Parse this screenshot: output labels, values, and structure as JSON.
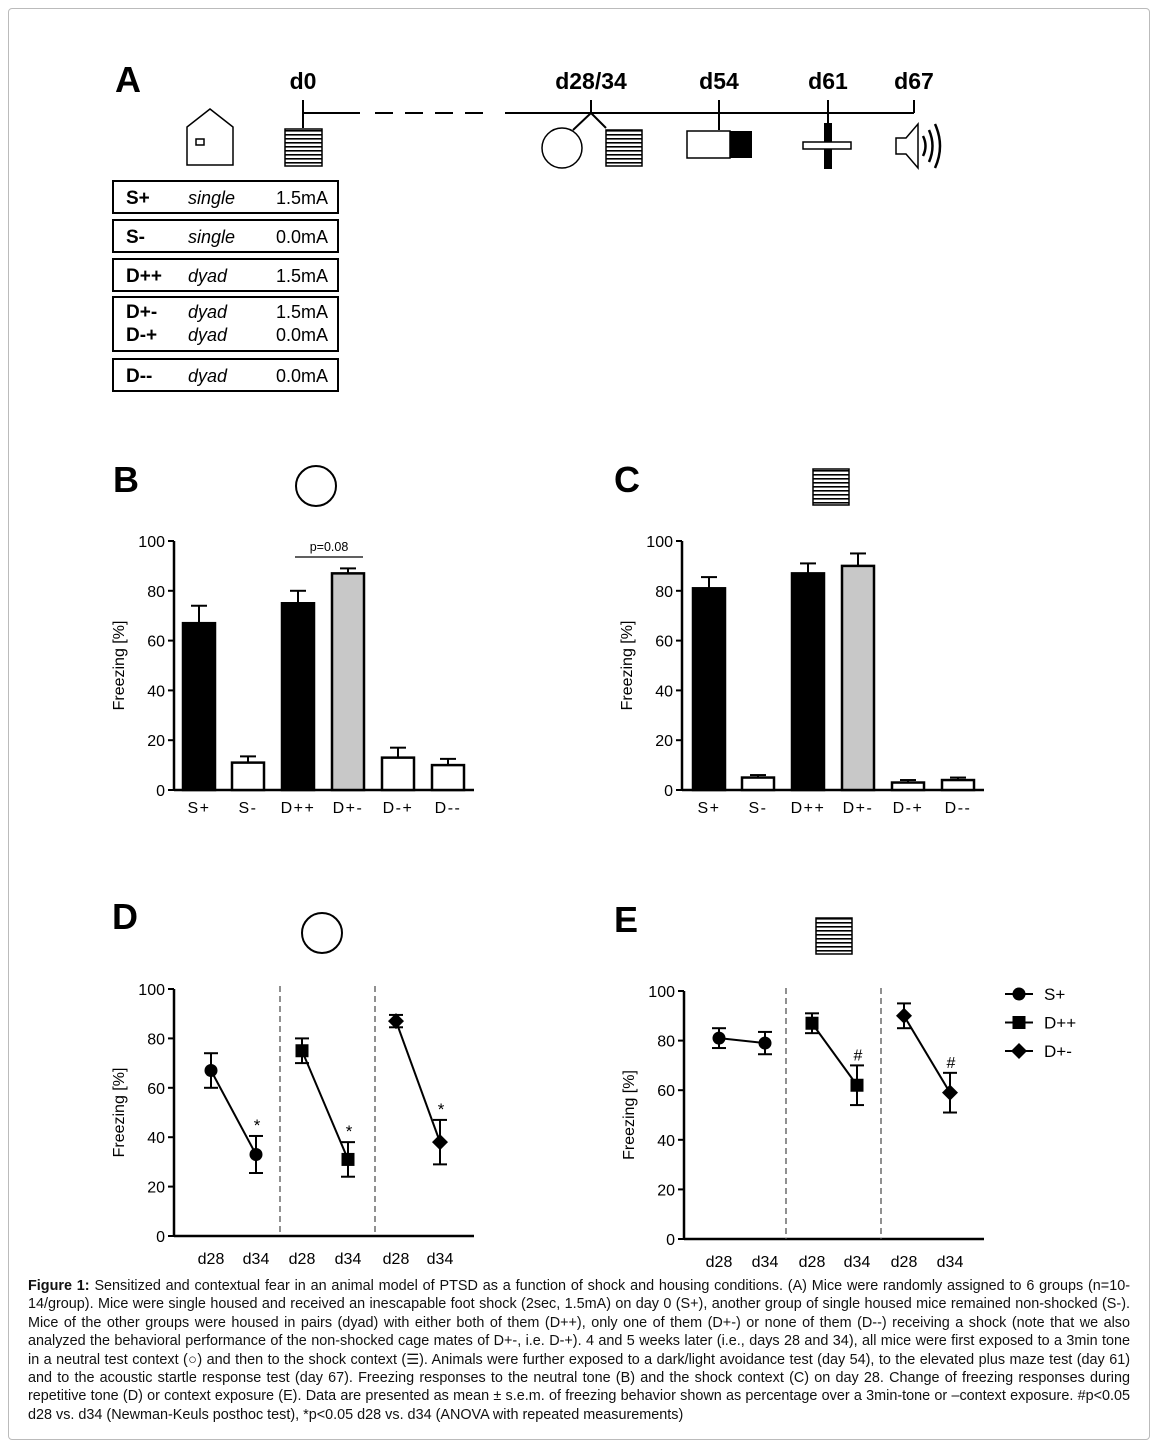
{
  "panel_a": {
    "letter": "A",
    "timepoints": [
      "d0",
      "d28/34",
      "d54",
      "d61",
      "d67"
    ],
    "groups": [
      {
        "rows": [
          {
            "name": "S+",
            "housing": "single",
            "shock": "1.5mA"
          }
        ]
      },
      {
        "rows": [
          {
            "name": "S-",
            "housing": "single",
            "shock": "0.0mA"
          }
        ]
      },
      {
        "rows": [
          {
            "name": "D++",
            "housing": "dyad",
            "shock": "1.5mA"
          }
        ]
      },
      {
        "rows": [
          {
            "name": "D+-",
            "housing": "dyad",
            "shock": "1.5mA"
          },
          {
            "name": "D-+",
            "housing": "dyad",
            "shock": "0.0mA"
          }
        ]
      },
      {
        "rows": [
          {
            "name": "D--",
            "housing": "dyad",
            "shock": "0.0mA"
          }
        ]
      }
    ]
  },
  "chart_data": [
    {
      "panel": "B",
      "type": "bar",
      "context_icon": "circle-icon",
      "ylabel": "Freezing [%]",
      "ylim": [
        0,
        100
      ],
      "yticks": [
        0,
        20,
        40,
        60,
        80,
        100
      ],
      "categories": [
        "S+",
        "S-",
        "D++",
        "D+-",
        "D-+",
        "D--"
      ],
      "values": [
        67,
        11,
        75,
        87,
        13,
        10
      ],
      "errors": [
        7,
        2.5,
        5,
        2,
        4,
        2.5
      ],
      "fills": [
        "#000000",
        "#ffffff",
        "#000000",
        "#c8c8c8",
        "#ffffff",
        "#ffffff"
      ],
      "annotation": {
        "text": "p=0.08",
        "between": [
          "D++",
          "D+-"
        ]
      }
    },
    {
      "panel": "C",
      "type": "bar",
      "context_icon": "striped-square-icon",
      "ylabel": "Freezing [%]",
      "ylim": [
        0,
        100
      ],
      "yticks": [
        0,
        20,
        40,
        60,
        80,
        100
      ],
      "categories": [
        "S+",
        "S-",
        "D++",
        "D+-",
        "D-+",
        "D--"
      ],
      "values": [
        81,
        5,
        87,
        90,
        3,
        4
      ],
      "errors": [
        4.5,
        1,
        4,
        5,
        1,
        1
      ],
      "fills": [
        "#000000",
        "#ffffff",
        "#000000",
        "#c8c8c8",
        "#ffffff",
        "#ffffff"
      ]
    },
    {
      "panel": "D",
      "type": "line",
      "context_icon": "circle-icon",
      "ylabel": "Freezing [%]",
      "ylim": [
        0,
        100
      ],
      "yticks": [
        0,
        20,
        40,
        60,
        80,
        100
      ],
      "x": [
        "d28",
        "d34"
      ],
      "series": [
        {
          "name": "S+",
          "marker": "circle",
          "values": [
            67,
            33
          ],
          "errors": [
            7,
            7.5
          ],
          "sig": "*"
        },
        {
          "name": "D++",
          "marker": "square",
          "values": [
            75,
            31
          ],
          "errors": [
            5,
            7
          ],
          "sig": "*"
        },
        {
          "name": "D+-",
          "marker": "diamond",
          "values": [
            87,
            38
          ],
          "errors": [
            2.5,
            9
          ],
          "sig": "*"
        }
      ]
    },
    {
      "panel": "E",
      "type": "line",
      "context_icon": "striped-square-icon",
      "ylabel": "Freezing [%]",
      "ylim": [
        0,
        100
      ],
      "yticks": [
        0,
        20,
        40,
        60,
        80,
        100
      ],
      "x": [
        "d28",
        "d34"
      ],
      "legend": "right",
      "series": [
        {
          "name": "S+",
          "marker": "circle",
          "values": [
            81,
            79
          ],
          "errors": [
            4,
            4.5
          ],
          "sig": ""
        },
        {
          "name": "D++",
          "marker": "square",
          "values": [
            87,
            62
          ],
          "errors": [
            4,
            8
          ],
          "sig": "#"
        },
        {
          "name": "D+-",
          "marker": "diamond",
          "values": [
            90,
            59
          ],
          "errors": [
            5,
            8
          ],
          "sig": "#"
        }
      ]
    }
  ],
  "caption": {
    "label": "Figure 1:",
    "text": " Sensitized and contextual fear in an animal model of PTSD as a function of shock and housing conditions. (A) Mice were randomly assigned to 6 groups (n=10-14/group). Mice were single housed and received an inescapable foot shock (2sec, 1.5mA) on day 0 (S+), another group of single housed mice remained non-shocked (S-). Mice of the other groups were housed in pairs (dyad) with either both of them (D++), only one of them (D+-) or none of them (D--) receiving a shock (note that we also analyzed the behavioral performance of the non-shocked cage mates of D+-, i.e. D-+). 4 and 5 weeks later (i.e., days 28 and 34), all mice were first exposed to a 3min tone in a neutral test context (○) and then to the shock context (☰). Animals were further exposed to a dark/light avoidance test (day 54), to the elevated plus maze test (day 61) and to the acoustic startle response test (day 67). Freezing responses to the neutral tone (B) and the shock context (C) on day 28. Change of freezing responses during repetitive tone (D) or context exposure (E). Data are presented as mean ± s.e.m. of freezing behavior shown as percentage over a 3min-tone or –context exposure. #p<0.05 d28 vs. d34 (Newman-Keuls posthoc test), *p<0.05 d28 vs. d34 (ANOVA with repeated measurements)"
  }
}
